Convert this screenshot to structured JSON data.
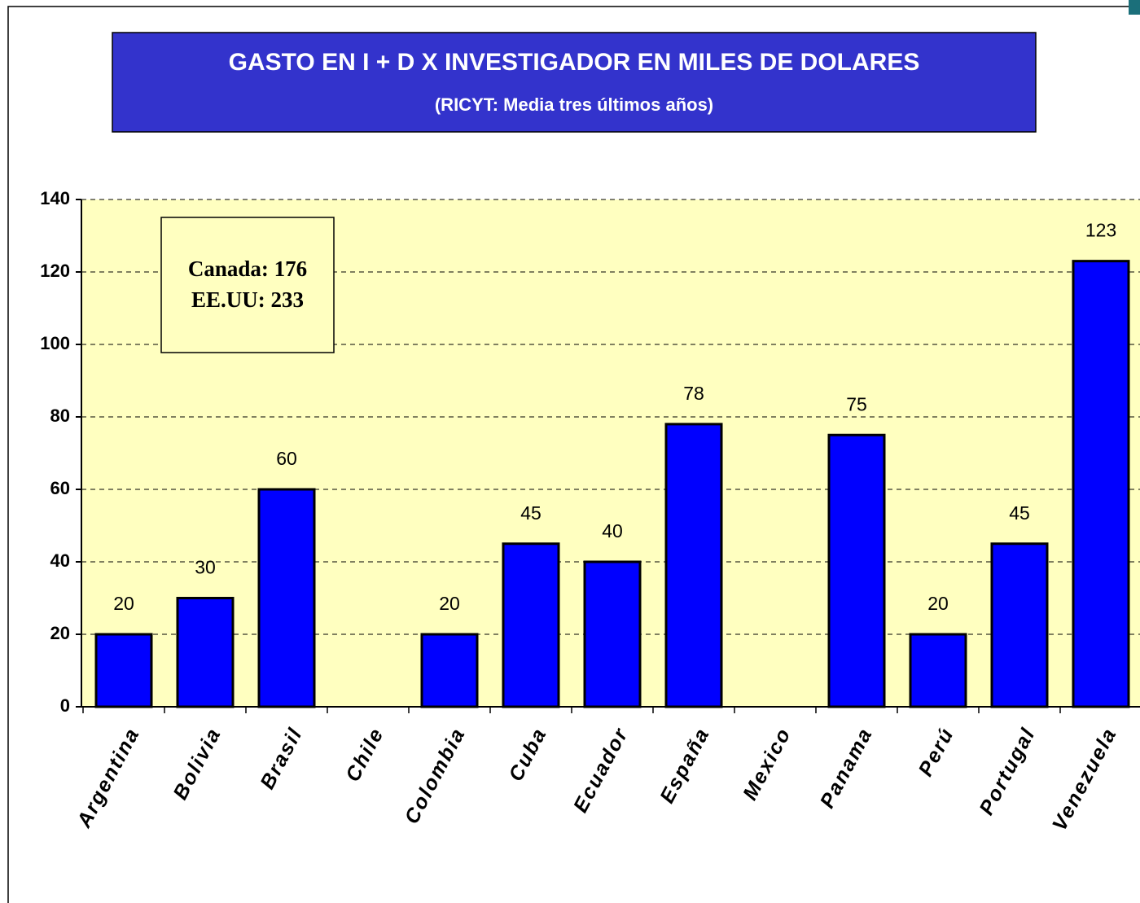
{
  "chart_data": {
    "type": "bar",
    "title": "GASTO EN I + D X INVESTIGADOR EN MILES DE DOLARES",
    "subtitle": "(RICYT: Media tres últimos años)",
    "categories": [
      "Argentina",
      "Bolivia",
      "Brasil",
      "Chile",
      "Colombia",
      "Cuba",
      "Ecuador",
      "España",
      "Mexico",
      "Panama",
      "Perú",
      "Portugal",
      "Venezuela"
    ],
    "values": [
      20,
      30,
      60,
      null,
      20,
      45,
      40,
      78,
      null,
      75,
      20,
      45,
      123
    ],
    "color": "#0000ff",
    "ylim": [
      0,
      140
    ],
    "yticks": [
      0,
      20,
      40,
      60,
      80,
      100,
      120,
      140
    ],
    "grid": true,
    "annotations": [
      "Canada: 176",
      "EE.UU: 233"
    ]
  }
}
